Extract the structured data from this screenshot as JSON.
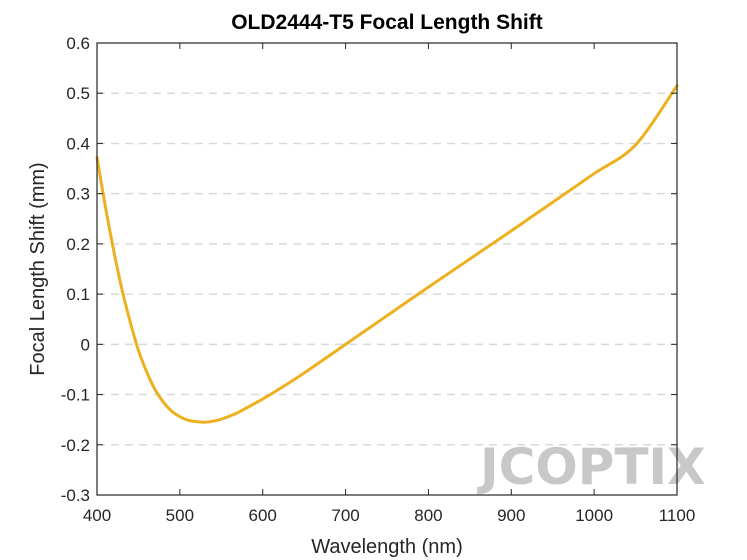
{
  "chart_data": {
    "type": "line",
    "title": "OLD2444-T5 Focal Length Shift",
    "xlabel": "Wavelength (nm)",
    "ylabel": "Focal Length Shift (mm)",
    "xlim": [
      400,
      1100
    ],
    "ylim": [
      -0.3,
      0.6
    ],
    "xticks": [
      400,
      500,
      600,
      700,
      800,
      900,
      1000,
      1100
    ],
    "yticks": [
      -0.3,
      -0.2,
      -0.1,
      0,
      0.1,
      0.2,
      0.3,
      0.4,
      0.5,
      0.6
    ],
    "ytick_labels": [
      "-0.3",
      "-0.2",
      "-0.1",
      "0",
      "0.1",
      "0.2",
      "0.3",
      "0.4",
      "0.5",
      "0.6"
    ],
    "grid": "horizontal-dashed",
    "series": [
      {
        "color": "#EDB120",
        "x": [
          400,
          410,
          420,
          430,
          440,
          450,
          460,
          470,
          480,
          490,
          500,
          510,
          520,
          530,
          540,
          550,
          560,
          570,
          580,
          600,
          620,
          650,
          700,
          750,
          800,
          850,
          900,
          950,
          1000,
          1050,
          1100
        ],
        "y": [
          0.372,
          0.275,
          0.188,
          0.11,
          0.045,
          -0.012,
          -0.055,
          -0.09,
          -0.115,
          -0.133,
          -0.144,
          -0.151,
          -0.154,
          -0.155,
          -0.153,
          -0.149,
          -0.143,
          -0.136,
          -0.127,
          -0.109,
          -0.089,
          -0.057,
          0.0,
          0.057,
          0.114,
          0.17,
          0.226,
          0.283,
          0.34,
          0.397,
          0.515
        ]
      }
    ],
    "watermark": "JCOPTIX"
  }
}
